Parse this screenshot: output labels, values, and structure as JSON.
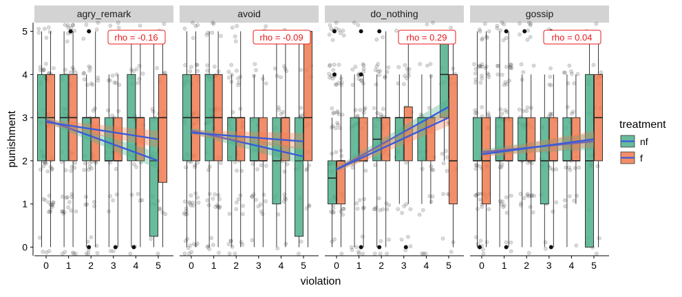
{
  "chart_data": {
    "type": "boxplot",
    "xlabel": "violation",
    "ylabel": "punishment",
    "x_ticks": [
      0,
      1,
      2,
      3,
      4,
      5
    ],
    "y_ticks": [
      0,
      1,
      2,
      3,
      4,
      5
    ],
    "ylim": [
      -0.2,
      5.2
    ],
    "legend": {
      "title": "treatment",
      "position": "right",
      "entries": [
        {
          "label": "nf",
          "color": "#4daf8a"
        },
        {
          "label": "f",
          "color": "#f07a4f"
        }
      ]
    },
    "colors": {
      "nf_fill": "#4daf8a",
      "f_fill": "#f07a4f",
      "fit_line": "#3a5bd9",
      "rho_text": "#e8171b",
      "strip_bg": "#d3d3d3",
      "points": "#333333"
    },
    "facets": [
      {
        "name": "agry_remark",
        "rho_label": "rho =  -0.16",
        "nf": [
          {
            "x": 0,
            "q1": 2,
            "med": 3,
            "q3": 4,
            "lo": 0,
            "hi": 5
          },
          {
            "x": 1,
            "q1": 2,
            "med": 3,
            "q3": 4,
            "lo": 0,
            "hi": 5
          },
          {
            "x": 2,
            "q1": 2,
            "med": 3,
            "q3": 3,
            "lo": 0,
            "hi": 4
          },
          {
            "x": 3,
            "q1": 2,
            "med": 2,
            "q3": 3,
            "lo": 0,
            "hi": 4
          },
          {
            "x": 4,
            "q1": 2,
            "med": 3,
            "q3": 4,
            "lo": 0,
            "hi": 5
          },
          {
            "x": 5,
            "q1": 0.25,
            "med": 2,
            "q3": 3,
            "lo": 0,
            "hi": 5
          }
        ],
        "f": [
          {
            "x": 0,
            "q1": 2,
            "med": 3,
            "q3": 4,
            "lo": 0,
            "hi": 5
          },
          {
            "x": 1,
            "q1": 2,
            "med": 3,
            "q3": 4,
            "lo": 0,
            "hi": 5
          },
          {
            "x": 2,
            "q1": 2,
            "med": 3,
            "q3": 3,
            "lo": 0,
            "hi": 5
          },
          {
            "x": 3,
            "q1": 2,
            "med": 2,
            "q3": 3,
            "lo": 0,
            "hi": 4
          },
          {
            "x": 4,
            "q1": 2,
            "med": 3,
            "q3": 3,
            "lo": 0,
            "hi": 5
          },
          {
            "x": 5,
            "q1": 1.5,
            "med": 3,
            "q3": 4,
            "lo": 0,
            "hi": 5
          }
        ],
        "fit_nf": [
          2.95,
          2.0
        ],
        "fit_f": [
          2.9,
          2.5
        ],
        "outliers": [
          [
            1,
            5
          ],
          [
            2,
            5
          ],
          [
            2,
            0
          ],
          [
            3,
            0
          ],
          [
            4,
            0
          ]
        ]
      },
      {
        "name": "avoid",
        "rho_label": "rho =  -0.09",
        "nf": [
          {
            "x": 0,
            "q1": 2,
            "med": 3,
            "q3": 4,
            "lo": 0,
            "hi": 5
          },
          {
            "x": 1,
            "q1": 2,
            "med": 3,
            "q3": 4,
            "lo": 0,
            "hi": 5
          },
          {
            "x": 2,
            "q1": 2,
            "med": 3,
            "q3": 3,
            "lo": 0,
            "hi": 4
          },
          {
            "x": 3,
            "q1": 2,
            "med": 2,
            "q3": 3,
            "lo": 0,
            "hi": 4
          },
          {
            "x": 4,
            "q1": 1,
            "med": 2,
            "q3": 3,
            "lo": 0,
            "hi": 5
          },
          {
            "x": 5,
            "q1": 0.25,
            "med": 2,
            "q3": 3,
            "lo": 0,
            "hi": 5
          }
        ],
        "f": [
          {
            "x": 0,
            "q1": 2,
            "med": 3,
            "q3": 4,
            "lo": 0,
            "hi": 5
          },
          {
            "x": 1,
            "q1": 2,
            "med": 3,
            "q3": 4,
            "lo": 0,
            "hi": 5
          },
          {
            "x": 2,
            "q1": 2,
            "med": 3,
            "q3": 3,
            "lo": 0,
            "hi": 5
          },
          {
            "x": 3,
            "q1": 2,
            "med": 2,
            "q3": 3,
            "lo": 0,
            "hi": 4
          },
          {
            "x": 4,
            "q1": 2,
            "med": 3,
            "q3": 3,
            "lo": 0,
            "hi": 5
          },
          {
            "x": 5,
            "q1": 2,
            "med": 3,
            "q3": 5,
            "lo": 0,
            "hi": 5
          }
        ],
        "fit_nf": [
          2.7,
          2.1
        ],
        "fit_f": [
          2.65,
          2.45
        ],
        "outliers": []
      },
      {
        "name": "do_nothing",
        "rho_label": "rho =  0.29",
        "nf": [
          {
            "x": 0,
            "q1": 1,
            "med": 1.6,
            "q3": 2,
            "lo": 0,
            "hi": 3
          },
          {
            "x": 1,
            "q1": 2,
            "med": 2,
            "q3": 3,
            "lo": 0,
            "hi": 4
          },
          {
            "x": 2,
            "q1": 2,
            "med": 2.5,
            "q3": 3,
            "lo": 0,
            "hi": 4
          },
          {
            "x": 3,
            "q1": 2,
            "med": 3,
            "q3": 3,
            "lo": 1,
            "hi": 4
          },
          {
            "x": 4,
            "q1": 2,
            "med": 3,
            "q3": 3,
            "lo": 1,
            "hi": 4
          },
          {
            "x": 5,
            "q1": 3,
            "med": 4,
            "q3": 5,
            "lo": 2,
            "hi": 5
          }
        ],
        "f": [
          {
            "x": 0,
            "q1": 1,
            "med": 2,
            "q3": 2,
            "lo": 0,
            "hi": 4
          },
          {
            "x": 1,
            "q1": 2,
            "med": 2,
            "q3": 3,
            "lo": 0,
            "hi": 4
          },
          {
            "x": 2,
            "q1": 2,
            "med": 3,
            "q3": 3,
            "lo": 0,
            "hi": 5
          },
          {
            "x": 3,
            "q1": 2,
            "med": 3,
            "q3": 3.25,
            "lo": 1,
            "hi": 5
          },
          {
            "x": 4,
            "q1": 2,
            "med": 3,
            "q3": 3,
            "lo": 1,
            "hi": 4
          },
          {
            "x": 5,
            "q1": 1,
            "med": 2,
            "q3": 4,
            "lo": 0,
            "hi": 5
          }
        ],
        "fit_nf": [
          1.8,
          3.25
        ],
        "fit_f": [
          1.8,
          3.0
        ],
        "outliers": [
          [
            0,
            5
          ],
          [
            0,
            4
          ],
          [
            1,
            5
          ],
          [
            1,
            4
          ],
          [
            2,
            5
          ],
          [
            2,
            0
          ],
          [
            3,
            0
          ],
          [
            1,
            0
          ]
        ]
      },
      {
        "name": "gossip",
        "rho_label": "rho =  0.04",
        "nf": [
          {
            "x": 0,
            "q1": 2,
            "med": 2,
            "q3": 3,
            "lo": 0,
            "hi": 5
          },
          {
            "x": 1,
            "q1": 2,
            "med": 2,
            "q3": 3,
            "lo": 0,
            "hi": 5
          },
          {
            "x": 2,
            "q1": 2,
            "med": 2,
            "q3": 3,
            "lo": 0,
            "hi": 4
          },
          {
            "x": 3,
            "q1": 1,
            "med": 2,
            "q3": 3,
            "lo": 0,
            "hi": 4
          },
          {
            "x": 4,
            "q1": 2,
            "med": 2,
            "q3": 3,
            "lo": 0,
            "hi": 4
          },
          {
            "x": 5,
            "q1": 0,
            "med": 2,
            "q3": 4,
            "lo": 0,
            "hi": 5
          }
        ],
        "f": [
          {
            "x": 0,
            "q1": 1,
            "med": 2,
            "q3": 3,
            "lo": 0,
            "hi": 5
          },
          {
            "x": 1,
            "q1": 2,
            "med": 2,
            "q3": 3,
            "lo": 0,
            "hi": 5
          },
          {
            "x": 2,
            "q1": 2,
            "med": 2,
            "q3": 3,
            "lo": 0,
            "hi": 4
          },
          {
            "x": 3,
            "q1": 2,
            "med": 2,
            "q3": 3,
            "lo": 0,
            "hi": 4
          },
          {
            "x": 4,
            "q1": 2,
            "med": 2,
            "q3": 3,
            "lo": 1,
            "hi": 4
          },
          {
            "x": 5,
            "q1": 2,
            "med": 3,
            "q3": 4,
            "lo": 0,
            "hi": 5
          }
        ],
        "fit_nf": [
          2.2,
          2.45
        ],
        "fit_f": [
          2.15,
          2.5
        ],
        "outliers": [
          [
            1,
            5
          ],
          [
            2,
            5
          ],
          [
            3,
            5
          ],
          [
            0,
            0
          ],
          [
            1,
            0
          ],
          [
            3,
            0
          ]
        ]
      }
    ]
  }
}
